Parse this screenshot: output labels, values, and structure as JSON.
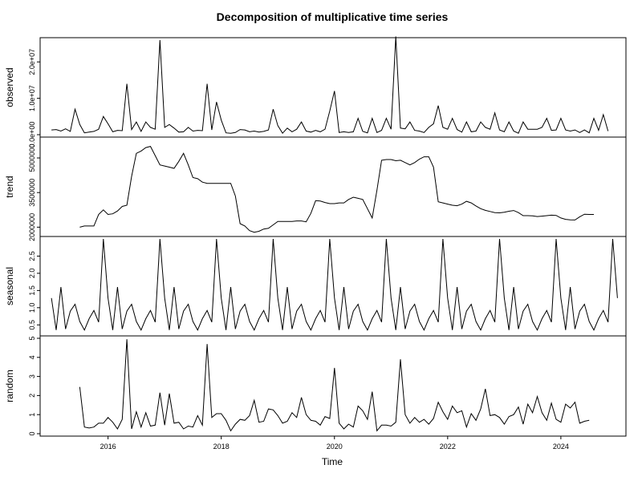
{
  "chart_data": {
    "type": "line",
    "title": "Decomposition of multiplicative time series",
    "xlabel": "Time",
    "xlim": [
      2014.8,
      2025.15
    ],
    "x_ticks": [
      "2016",
      "2018",
      "2020",
      "2022",
      "2024"
    ],
    "grid": false,
    "panels": [
      {
        "name": "observed",
        "ylabel": "observed",
        "ylim": [
          0,
          26000000.0
        ],
        "tick_labels": [
          "0.0e+00",
          "1.0e+07",
          "2.0e+07"
        ],
        "x_start": 2015.0,
        "step": 0.0833333,
        "values": [
          1300000.0,
          1400000.0,
          1000000.0,
          1600000.0,
          900000.0,
          7000000.0,
          2800000.0,
          500000.0,
          700000.0,
          900000.0,
          1500000.0,
          5000000.0,
          3000000.0,
          800000.0,
          1200000.0,
          1100000.0,
          14000000.0,
          1400000.0,
          3500000.0,
          900000.0,
          3500000.0,
          2000000.0,
          1500000.0,
          26000000.0,
          2000000.0,
          2800000.0,
          1800000.0,
          700000.0,
          800000.0,
          2000000.0,
          1000000.0,
          1200000.0,
          1100000.0,
          14000000.0,
          1300000.0,
          9000000.0,
          4000000.0,
          500000.0,
          400000.0,
          600000.0,
          1400000.0,
          1300000.0,
          800000.0,
          1000000.0,
          700000.0,
          900000.0,
          1300000.0,
          7000000.0,
          2500000.0,
          400000.0,
          1800000.0,
          800000.0,
          1500000.0,
          3500000.0,
          1000000.0,
          700000.0,
          1200000.0,
          800000.0,
          1500000.0,
          6500000.0,
          12000000.0,
          600000.0,
          800000.0,
          600000.0,
          800000.0,
          4500000.0,
          900000.0,
          500000.0,
          4500000.0,
          600000.0,
          1200000.0,
          4500000.0,
          1500000.0,
          27000000.0,
          1800000.0,
          1600000.0,
          3500000.0,
          1200000.0,
          1000000.0,
          600000.0,
          2000000.0,
          3000000.0,
          8000000.0,
          2000000.0,
          1500000.0,
          4500000.0,
          1400000.0,
          700000.0,
          3500000.0,
          800000.0,
          1000000.0,
          3500000.0,
          2000000.0,
          1500000.0,
          6000000.0,
          1300000.0,
          800000.0,
          3500000.0,
          1000000.0,
          400000.0,
          3500000.0,
          1500000.0,
          1500000.0,
          1500000.0,
          2000000.0,
          4500000.0,
          1200000.0,
          1300000.0,
          4500000.0,
          1300000.0,
          1000000.0,
          1300000.0,
          600000.0,
          1300000.0,
          500000.0,
          4500000.0,
          1200000.0,
          5500000.0,
          1000000.0
        ]
      },
      {
        "name": "trend",
        "ylabel": "trend",
        "ylim": [
          1700000,
          5800000
        ],
        "tick_labels": [
          "2000000",
          "3500000",
          "5000000"
        ],
        "x_start": 2015.5,
        "step": 0.0833333,
        "values": [
          2000000,
          2050000,
          2050000,
          2050000,
          2550000,
          2750000,
          2550000,
          2580000,
          2700000,
          2900000,
          2950000,
          4200000,
          5200000,
          5300000,
          5450000,
          5500000,
          5100000,
          4700000,
          4650000,
          4600000,
          4550000,
          4850000,
          5200000,
          4700000,
          4150000,
          4100000,
          3950000,
          3900000,
          3900000,
          3900000,
          3900000,
          3900000,
          3900000,
          3350000,
          2150000,
          2050000,
          1850000,
          1780000,
          1820000,
          1920000,
          1950000,
          2100000,
          2250000,
          2250000,
          2250000,
          2250000,
          2270000,
          2270000,
          2230000,
          2600000,
          3150000,
          3130000,
          3070000,
          3020000,
          3020000,
          3050000,
          3050000,
          3200000,
          3300000,
          3250000,
          3200000,
          2800000,
          2400000,
          3600000,
          4900000,
          4930000,
          4930000,
          4880000,
          4900000,
          4800000,
          4700000,
          4800000,
          4950000,
          5050000,
          5050000,
          4600000,
          3100000,
          3050000,
          3000000,
          2950000,
          2930000,
          3000000,
          3120000,
          3050000,
          2920000,
          2800000,
          2730000,
          2680000,
          2630000,
          2620000,
          2650000,
          2690000,
          2720000,
          2630000,
          2500000,
          2500000,
          2490000,
          2460000,
          2480000,
          2500000,
          2520000,
          2510000,
          2400000,
          2340000,
          2320000,
          2310000,
          2450000,
          2560000,
          2550000,
          2550000
        ]
      },
      {
        "name": "seasonal",
        "ylabel": "seasonal",
        "ylim": [
          0.25,
          3.0
        ],
        "tick_labels": [
          "0.5",
          "1.0",
          "1.5",
          "2.0",
          "2.5"
        ],
        "x_start": 2015.0,
        "step": 0.0833333,
        "pattern": [
          1.28,
          0.35,
          1.6,
          0.38,
          0.9,
          1.1,
          0.6,
          0.35,
          0.68,
          0.92,
          0.58,
          3.0
        ],
        "periods": 10,
        "tail": [
          1.28
        ]
      },
      {
        "name": "random",
        "ylabel": "random",
        "ylim": [
          0,
          5
        ],
        "tick_labels": [
          "0",
          "1",
          "2",
          "3",
          "4",
          "5"
        ],
        "x_start": 2015.5,
        "step": 0.0833333,
        "values": [
          2.45,
          0.35,
          0.3,
          0.35,
          0.55,
          0.55,
          0.85,
          0.6,
          0.25,
          0.75,
          4.95,
          0.25,
          1.15,
          0.35,
          1.1,
          0.4,
          0.45,
          2.15,
          0.45,
          2.1,
          0.55,
          0.6,
          0.25,
          0.4,
          0.35,
          0.95,
          0.45,
          4.7,
          0.85,
          1.05,
          1.05,
          0.7,
          0.15,
          0.5,
          0.75,
          0.7,
          0.95,
          1.75,
          0.6,
          0.65,
          1.3,
          1.25,
          0.95,
          0.55,
          0.65,
          1.1,
          0.85,
          1.9,
          1.0,
          0.7,
          0.65,
          0.45,
          0.9,
          0.8,
          3.45,
          0.55,
          0.25,
          0.5,
          0.35,
          1.45,
          1.2,
          0.75,
          2.2,
          0.15,
          0.45,
          0.45,
          0.4,
          0.6,
          3.9,
          1.0,
          0.55,
          0.85,
          0.6,
          0.75,
          0.5,
          0.8,
          1.65,
          1.15,
          0.75,
          1.45,
          1.1,
          1.2,
          0.35,
          1.05,
          0.7,
          1.3,
          2.35,
          0.95,
          1.0,
          0.85,
          0.5,
          0.9,
          1.0,
          1.4,
          0.5,
          1.55,
          1.1,
          1.95,
          1.1,
          0.7,
          1.6,
          0.75,
          0.6,
          1.55,
          1.35,
          1.65,
          0.55,
          0.65,
          0.7
        ]
      }
    ]
  }
}
